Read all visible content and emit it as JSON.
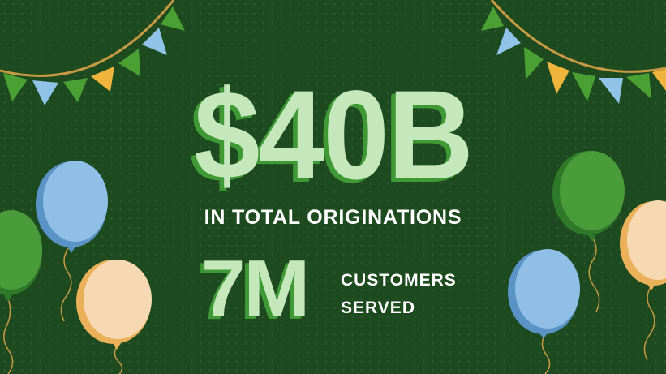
{
  "headline": {
    "value": "$40B",
    "caption": "IN TOTAL ORIGINATIONS"
  },
  "stat": {
    "value": "7M",
    "label_line1": "CUSTOMERS",
    "label_line2": "SERVED"
  },
  "colors": {
    "background": "#1d4a1f",
    "headline_text": "#c4e8bc",
    "headline_shadow": "#3f9a36",
    "caption_text": "#ffffff",
    "bunting_string": "#c89a44",
    "flag_green": "#4aa033",
    "flag_blue": "#8fc3e8",
    "flag_yellow": "#efb43c",
    "balloon_blue": "#8fbfe6",
    "balloon_green": "#4a9b3a",
    "balloon_cream": "#f6d9b2"
  },
  "decorations": {
    "bunting": [
      "bunting-left",
      "bunting-right"
    ],
    "balloons": [
      "balloon-blue-left",
      "balloon-green-left",
      "balloon-cream-left",
      "balloon-green-right",
      "balloon-cream-right",
      "balloon-blue-right"
    ]
  }
}
